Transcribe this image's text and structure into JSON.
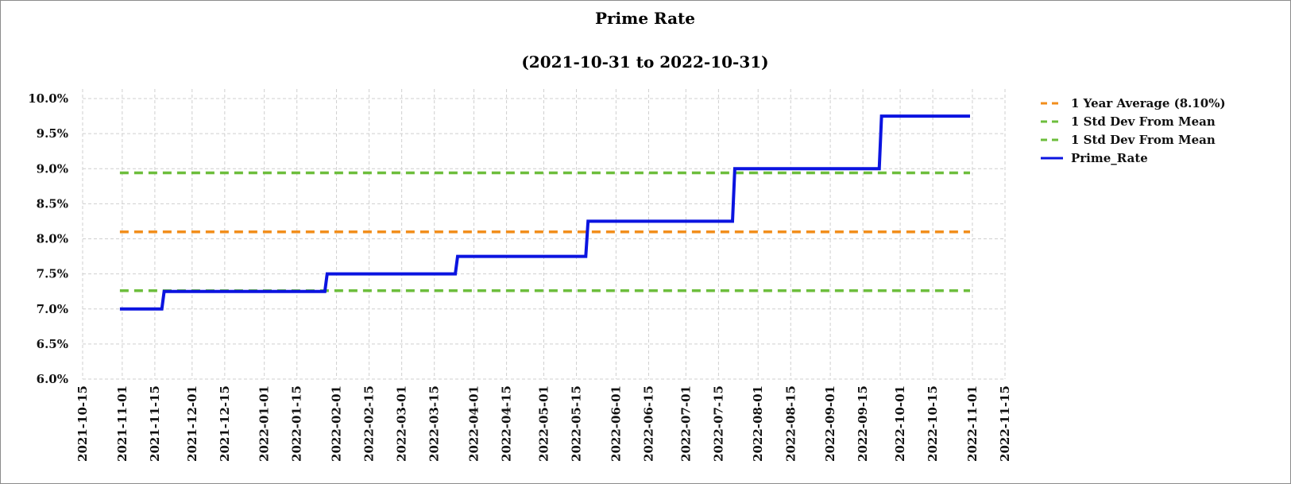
{
  "chart_data": {
    "type": "line",
    "title": "Prime Rate",
    "subtitle": "(2021-10-31 to 2022-10-31)",
    "xlabel": "",
    "ylabel": "",
    "x_ticks": [
      "2021-10-15",
      "2021-11-01",
      "2021-11-15",
      "2021-12-01",
      "2021-12-15",
      "2022-01-01",
      "2022-01-15",
      "2022-02-01",
      "2022-02-15",
      "2022-03-01",
      "2022-03-15",
      "2022-04-01",
      "2022-04-15",
      "2022-05-01",
      "2022-05-15",
      "2022-06-01",
      "2022-06-15",
      "2022-07-01",
      "2022-07-15",
      "2022-08-01",
      "2022-08-15",
      "2022-09-01",
      "2022-09-15",
      "2022-10-01",
      "2022-10-15",
      "2022-11-01",
      "2022-11-15"
    ],
    "y_ticks": [
      "6.0%",
      "6.5%",
      "7.0%",
      "7.5%",
      "8.0%",
      "8.5%",
      "9.0%",
      "9.5%",
      "10.0%"
    ],
    "ylim": [
      6.0,
      10.0
    ],
    "xlim": [
      "2021-10-15",
      "2022-11-15"
    ],
    "grid": true,
    "legend_position": "right",
    "series": [
      {
        "name": "1 Year Average (8.10%)",
        "style": "dashed",
        "color": "#f28e1c",
        "points": [
          [
            "2021-10-31",
            8.1
          ],
          [
            "2022-10-31",
            8.1
          ]
        ]
      },
      {
        "name": "1 Std Dev From Mean",
        "style": "dashed",
        "color": "#6dbe3c",
        "points": [
          [
            "2021-10-31",
            8.94
          ],
          [
            "2022-10-31",
            8.94
          ]
        ]
      },
      {
        "name": "1 Std Dev From Mean",
        "style": "dashed",
        "color": "#6dbe3c",
        "points": [
          [
            "2021-10-31",
            7.26
          ],
          [
            "2022-10-31",
            7.26
          ]
        ]
      },
      {
        "name": "Prime_Rate",
        "style": "solid",
        "color": "#0b14e0",
        "points": [
          [
            "2021-10-31",
            7.0
          ],
          [
            "2021-11-18",
            7.0
          ],
          [
            "2021-11-19",
            7.25
          ],
          [
            "2022-01-27",
            7.25
          ],
          [
            "2022-01-28",
            7.5
          ],
          [
            "2022-03-24",
            7.5
          ],
          [
            "2022-03-25",
            7.75
          ],
          [
            "2022-05-19",
            7.75
          ],
          [
            "2022-05-20",
            8.25
          ],
          [
            "2022-07-21",
            8.25
          ],
          [
            "2022-07-22",
            9.0
          ],
          [
            "2022-09-22",
            9.0
          ],
          [
            "2022-09-23",
            9.75
          ],
          [
            "2022-10-31",
            9.75
          ]
        ]
      }
    ]
  }
}
